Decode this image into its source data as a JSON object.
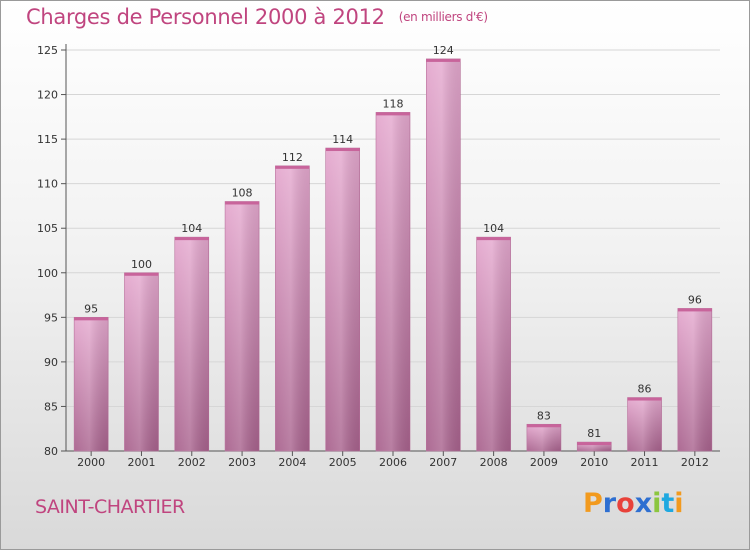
{
  "header": {
    "title": "Charges de Personnel 2000 à 2012",
    "unit": "(en milliers d'€)"
  },
  "footer": {
    "commune": "SAINT-CHARTIER",
    "brand": "Proxiti"
  },
  "colors": {
    "title": "#c0457f",
    "bar_top": "#e5a9cf",
    "bar_bottom": "#a9638e",
    "brand_letters": [
      "#f29a1e",
      "#2e6fd1",
      "#e8423a",
      "#2e6fd1",
      "#8cc63f",
      "#1fa8e0",
      "#f29a1e"
    ]
  },
  "chart_data": {
    "type": "bar",
    "categories": [
      "2000",
      "2001",
      "2002",
      "2003",
      "2004",
      "2005",
      "2006",
      "2007",
      "2008",
      "2009",
      "2010",
      "2011",
      "2012"
    ],
    "values": [
      95,
      100,
      104,
      108,
      112,
      114,
      118,
      124,
      104,
      83,
      81,
      86,
      96
    ],
    "xlabel": "",
    "ylabel": "",
    "ylim": [
      80,
      125
    ],
    "yticks": [
      80,
      85,
      90,
      95,
      100,
      105,
      110,
      115,
      120,
      125
    ],
    "grid": true,
    "legend": "none"
  }
}
